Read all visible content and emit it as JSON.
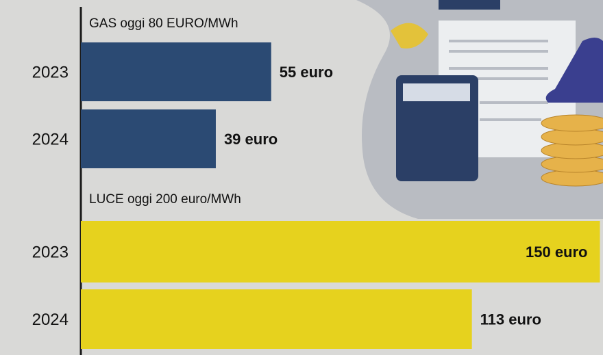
{
  "chart_data": [
    {
      "type": "bar",
      "orientation": "horizontal",
      "title": "GAS oggi 80 EURO/MWh",
      "categories": [
        "2023",
        "2024"
      ],
      "values": [
        55,
        39
      ],
      "value_labels": [
        "55 euro",
        "39 euro"
      ],
      "color": "#2b4a73"
    },
    {
      "type": "bar",
      "orientation": "horizontal",
      "title": "LUCE oggi 200 euro/MWh",
      "categories": [
        "2023",
        "2024"
      ],
      "values": [
        150,
        113
      ],
      "value_labels": [
        "150 euro",
        "113 euro"
      ],
      "color": "#e6d21e"
    }
  ]
}
